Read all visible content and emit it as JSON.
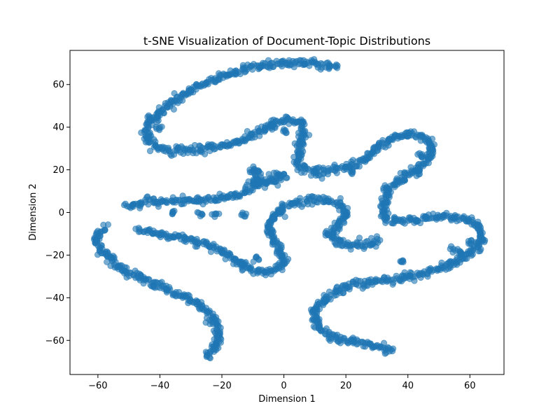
{
  "chart_data": {
    "type": "scatter",
    "title": "t-SNE Visualization of Document-Topic Distributions",
    "xlabel": "Dimension 1",
    "ylabel": "Dimension 2",
    "xlim": [
      -69,
      71
    ],
    "ylim": [
      -76,
      76
    ],
    "xticks": [
      -60,
      -40,
      -20,
      0,
      20,
      40,
      60
    ],
    "yticks": [
      -60,
      -40,
      -20,
      0,
      20,
      40,
      60
    ],
    "xtick_labels": [
      "−60",
      "−40",
      "−20",
      "0",
      "20",
      "40",
      "60"
    ],
    "ytick_labels": [
      "−60",
      "−40",
      "−20",
      "0",
      "20",
      "40",
      "60"
    ],
    "grid": false,
    "legend": "none",
    "point_color": "#1f77b4",
    "point_alpha": 0.6,
    "curves": [
      [
        [
          17.5,
          68
        ],
        [
          10,
          70
        ],
        [
          0,
          70
        ],
        [
          -10,
          68
        ],
        [
          -20,
          64
        ],
        [
          -28,
          59
        ],
        [
          -35,
          53
        ],
        [
          -40,
          47
        ],
        [
          -44,
          41
        ],
        [
          -44,
          35
        ],
        [
          -42,
          31
        ],
        [
          -36,
          29
        ],
        [
          -28,
          29.5
        ],
        [
          -20,
          31
        ],
        [
          -13,
          34
        ],
        [
          -7,
          38.5
        ],
        [
          -3,
          42
        ],
        [
          3,
          43.5
        ],
        [
          6,
          41
        ],
        [
          6.5,
          36
        ],
        [
          5,
          29
        ],
        [
          4.5,
          23
        ],
        [
          7,
          20
        ],
        [
          13,
          19.5
        ],
        [
          20,
          21
        ],
        [
          26,
          25
        ],
        [
          31,
          31
        ],
        [
          36,
          35.5
        ],
        [
          42,
          37
        ],
        [
          47,
          34
        ],
        [
          48,
          28
        ],
        [
          45,
          23
        ],
        [
          41,
          19
        ],
        [
          37,
          15
        ],
        [
          34,
          11
        ],
        [
          32,
          5
        ],
        [
          32,
          0
        ],
        [
          33,
          -3.5
        ],
        [
          38,
          -4
        ],
        [
          44,
          -3
        ],
        [
          50,
          -2
        ],
        [
          55,
          -2.5
        ],
        [
          60,
          -4
        ],
        [
          63,
          -7
        ],
        [
          64,
          -12
        ],
        [
          62,
          -17
        ],
        [
          58,
          -21
        ],
        [
          54,
          -24
        ],
        [
          49,
          -27
        ],
        [
          43,
          -29
        ],
        [
          38,
          -31
        ],
        [
          32,
          -32
        ],
        [
          27,
          -33
        ],
        [
          22,
          -34
        ],
        [
          17,
          -37
        ],
        [
          13,
          -41
        ],
        [
          10,
          -46
        ],
        [
          10,
          -50
        ],
        [
          12,
          -55
        ],
        [
          15,
          -58
        ],
        [
          19,
          -60
        ],
        [
          24,
          -61
        ],
        [
          30,
          -63
        ],
        [
          35,
          -65
        ]
      ],
      [
        [
          -51,
          3
        ],
        [
          -44,
          5
        ],
        [
          -36,
          5
        ],
        [
          -28,
          5.5
        ],
        [
          -20,
          6.5
        ],
        [
          -13,
          9
        ],
        [
          -9,
          14
        ],
        [
          -9,
          20
        ],
        [
          -11,
          20
        ]
      ],
      [
        [
          -9,
          13
        ],
        [
          -5,
          15.5
        ],
        [
          -2,
          17.5
        ],
        [
          0,
          18
        ]
      ],
      [
        [
          -58,
          -7
        ],
        [
          -61,
          -13
        ],
        [
          -58,
          -19
        ],
        [
          -55,
          -24
        ],
        [
          -51,
          -28
        ],
        [
          -46,
          -31
        ],
        [
          -40,
          -35
        ],
        [
          -35,
          -38
        ],
        [
          -30,
          -41
        ],
        [
          -26,
          -44
        ],
        [
          -24,
          -48
        ],
        [
          -22,
          -52
        ],
        [
          -21,
          -57
        ],
        [
          -22,
          -62
        ],
        [
          -24,
          -68
        ]
      ],
      [
        [
          -47,
          -8
        ],
        [
          -40,
          -10
        ],
        [
          -32,
          -12
        ],
        [
          -25,
          -15
        ],
        [
          -20,
          -18
        ],
        [
          -16,
          -22
        ],
        [
          -12,
          -26
        ],
        [
          -8,
          -28
        ],
        [
          -3,
          -27
        ],
        [
          0,
          -23
        ],
        [
          -1,
          -18
        ],
        [
          -4,
          -12
        ],
        [
          -5,
          -6
        ],
        [
          -3,
          -1
        ],
        [
          0,
          3
        ],
        [
          4,
          5
        ],
        [
          10,
          6
        ],
        [
          15,
          5.5
        ],
        [
          19,
          3
        ],
        [
          20,
          -2
        ],
        [
          17,
          -7
        ],
        [
          15,
          -10
        ],
        [
          17,
          -14
        ],
        [
          22,
          -15.5
        ],
        [
          27,
          -15
        ],
        [
          31,
          -13
        ]
      ]
    ],
    "extra_clusters": [
      [
        -40,
        40
      ],
      [
        -43,
        44
      ],
      [
        -9,
        -22
      ],
      [
        -14,
        -23
      ],
      [
        -36,
        0
      ],
      [
        -27,
        -1
      ],
      [
        -22,
        -1
      ],
      [
        -13,
        -1
      ],
      [
        -1,
        0
      ],
      [
        -6,
        14
      ],
      [
        -3,
        14
      ],
      [
        -1,
        17
      ],
      [
        -4,
        40
      ],
      [
        0,
        38
      ],
      [
        10,
        18
      ],
      [
        14,
        -10
      ],
      [
        22,
        19
      ],
      [
        44,
        27
      ],
      [
        43,
        19
      ],
      [
        33,
        11
      ],
      [
        55,
        -17
      ],
      [
        57,
        -19
      ],
      [
        60,
        -14
      ],
      [
        38,
        -23
      ]
    ]
  }
}
